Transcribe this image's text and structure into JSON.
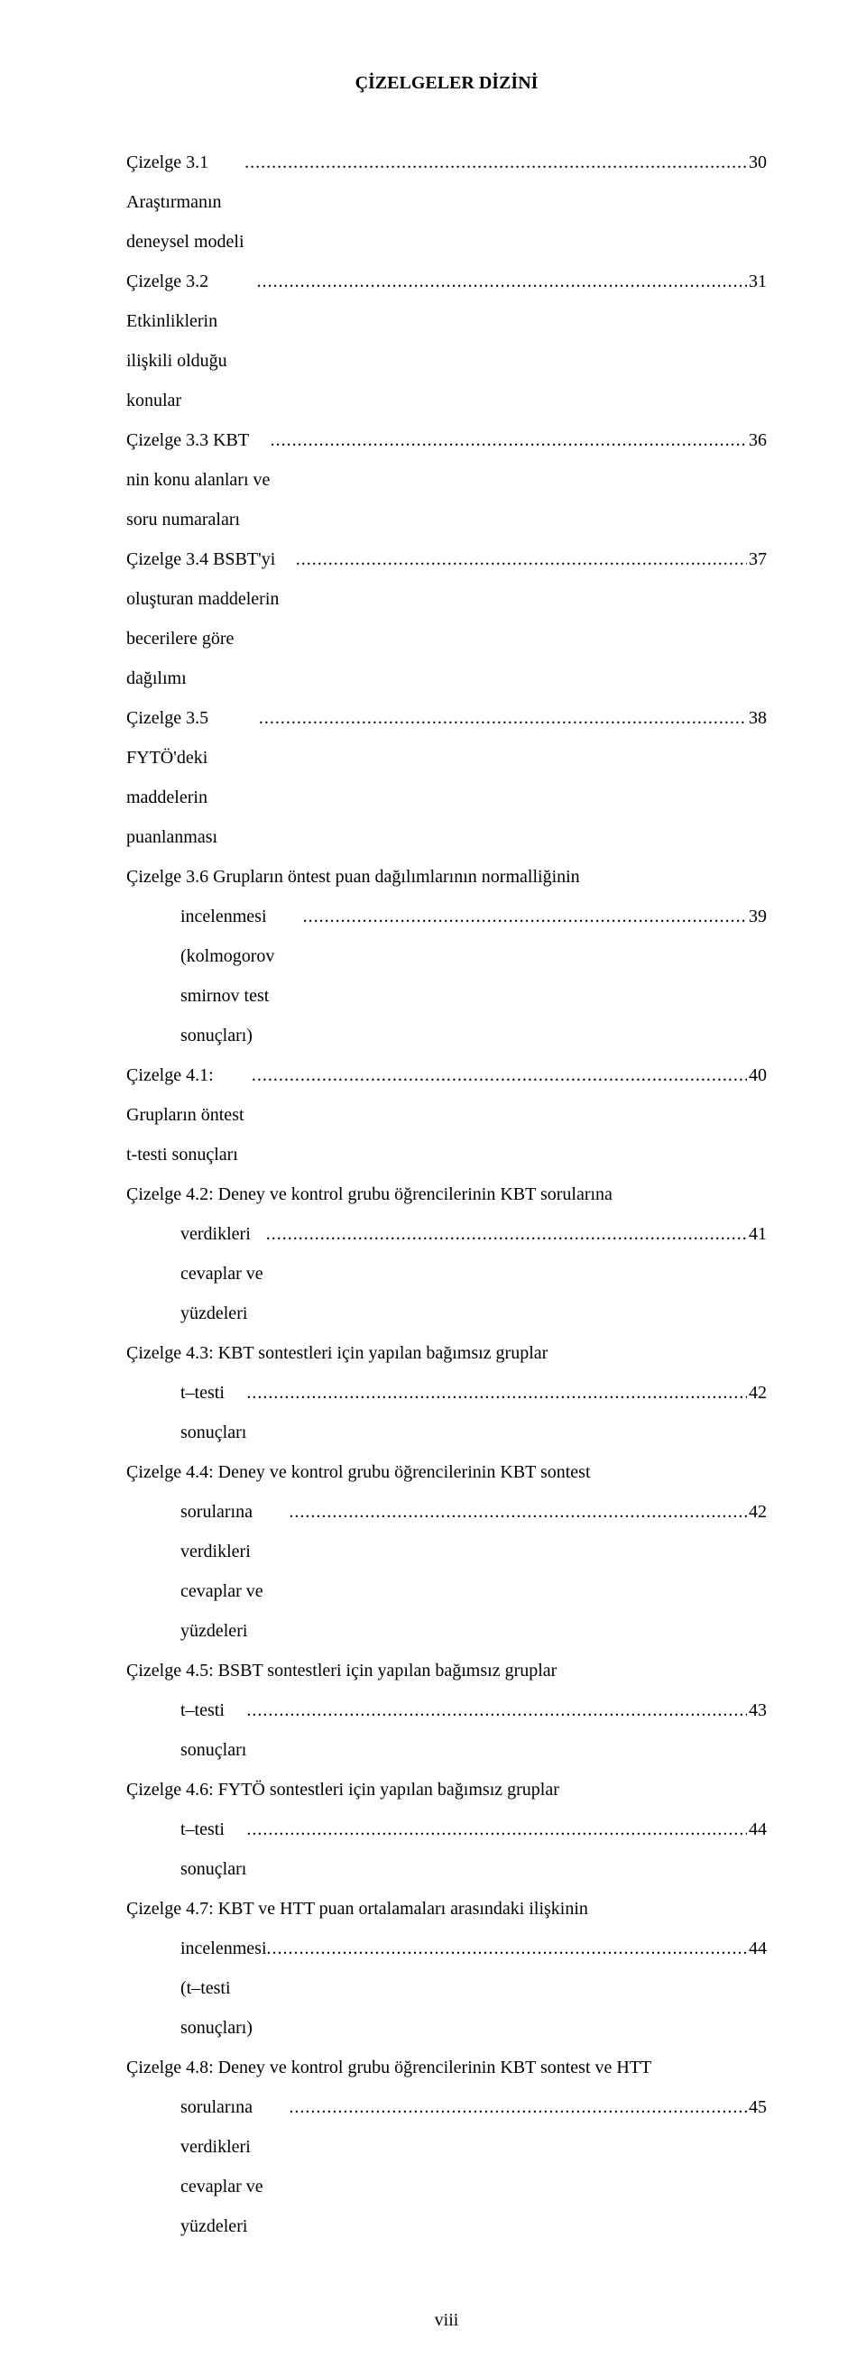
{
  "title": "ÇİZELGELER DİZİNİ",
  "entries": [
    {
      "text": "Çizelge 3.1 Araştırmanın deneysel modeli",
      "page": "30",
      "indent": false
    },
    {
      "text": "Çizelge 3.2 Etkinliklerin ilişkili olduğu konular",
      "page": "31",
      "indent": false
    },
    {
      "text": "Çizelge 3.3 KBT nin konu alanları ve soru numaraları",
      "page": "36",
      "indent": false
    },
    {
      "text": "Çizelge 3.4 BSBT'yi oluşturan maddelerin becerilere göre dağılımı",
      "page": "37",
      "indent": false
    },
    {
      "text": "Çizelge 3.5 FYTÖ'deki maddelerin puanlanması",
      "page": "38",
      "indent": false
    },
    {
      "text": "Çizelge 3.6 Grupların öntest puan dağılımlarının normalliğinin",
      "page": "",
      "indent": false
    },
    {
      "text": "incelenmesi (kolmogorov smirnov test sonuçları)",
      "page": "39",
      "indent": true
    },
    {
      "text": "Çizelge 4.1: Grupların öntest t-testi sonuçları",
      "page": "40",
      "indent": false
    },
    {
      "text": "Çizelge 4.2: Deney ve kontrol grubu öğrencilerinin KBT sorularına",
      "page": "",
      "indent": false
    },
    {
      "text": "verdikleri cevaplar ve yüzdeleri",
      "page": "41",
      "indent": true
    },
    {
      "text": "Çizelge 4.3: KBT sontestleri için yapılan bağımsız gruplar",
      "page": "",
      "indent": false
    },
    {
      "text": "t–testi sonuçları",
      "page": "42",
      "indent": true
    },
    {
      "text": "Çizelge 4.4: Deney ve kontrol grubu öğrencilerinin KBT sontest",
      "page": "",
      "indent": false
    },
    {
      "text": "sorularına verdikleri cevaplar ve yüzdeleri",
      "page": "42",
      "indent": true
    },
    {
      "text": "Çizelge 4.5: BSBT sontestleri için yapılan bağımsız gruplar",
      "page": "",
      "indent": false
    },
    {
      "text": "t–testi sonuçları",
      "page": "43",
      "indent": true
    },
    {
      "text": "Çizelge 4.6: FYTÖ sontestleri için yapılan bağımsız gruplar",
      "page": "",
      "indent": false
    },
    {
      "text": "t–testi sonuçları",
      "page": "44",
      "indent": true
    },
    {
      "text": "Çizelge 4.7: KBT ve HTT puan ortalamaları arasındaki ilişkinin",
      "page": "",
      "indent": false
    },
    {
      "text": "incelenmesi (t–testi sonuçları)",
      "page": "44",
      "indent": true
    },
    {
      "text": "Çizelge 4.8: Deney ve kontrol grubu öğrencilerinin KBT sontest ve HTT",
      "page": "",
      "indent": false
    },
    {
      "text": "sorularına verdikleri cevaplar ve yüzdeleri",
      "page": "45",
      "indent": true
    }
  ],
  "dots": "..............................................................................................................................................................................................................................................",
  "page_number": "viii"
}
